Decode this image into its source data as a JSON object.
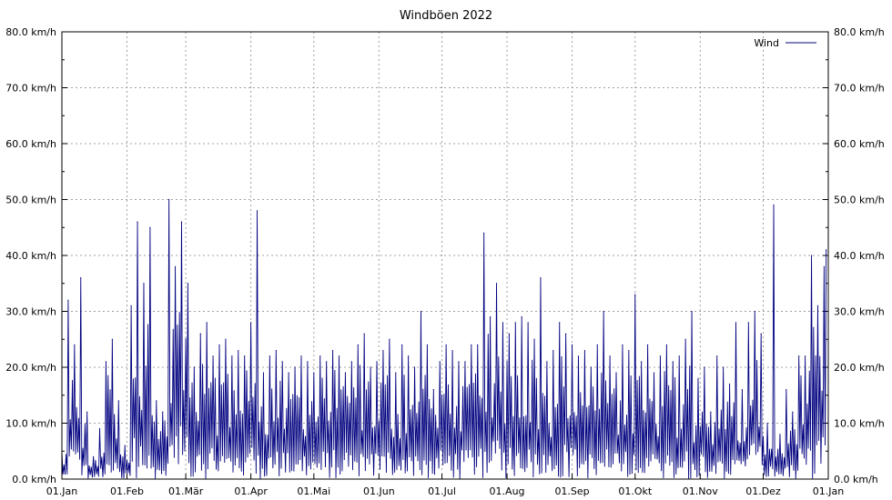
{
  "chart_data": {
    "type": "line",
    "title": "Windböen 2022",
    "xlabel": "",
    "ylabel": "",
    "unit": "km/h",
    "ylim": [
      0,
      80
    ],
    "yticks": [
      0,
      10,
      20,
      30,
      40,
      50,
      60,
      70,
      80
    ],
    "ytick_labels": [
      "0.0 km/h",
      "10.0 km/h",
      "20.0 km/h",
      "30.0 km/h",
      "40.0 km/h",
      "50.0 km/h",
      "60.0 km/h",
      "70.0 km/h",
      "80.0 km/h"
    ],
    "xlim": [
      "2022-01-01",
      "2023-01-01"
    ],
    "xtick_dates": [
      "2022-01-01",
      "2022-02-01",
      "2022-03-01",
      "2022-04-01",
      "2022-05-01",
      "2022-06-01",
      "2022-07-01",
      "2022-08-01",
      "2022-09-01",
      "2022-10-01",
      "2022-11-01",
      "2022-12-01",
      "2023-01-01"
    ],
    "xtick_labels": [
      "01.Jan",
      "01.Feb",
      "01.Mär",
      "01.Apr",
      "01.Mai",
      "01.Jun",
      "01.Jul",
      "01.Aug",
      "01.Sep",
      "01.Okt",
      "01.Nov",
      "01.Dez",
      "01.Jan"
    ],
    "grid": true,
    "legend": "top-right",
    "series": [
      {
        "name": "Wind",
        "color": "#00007f",
        "x": [
          "2022-01-01",
          "2022-01-04",
          "2022-01-07",
          "2022-01-10",
          "2022-01-13",
          "2022-01-16",
          "2022-01-19",
          "2022-01-22",
          "2022-01-25",
          "2022-01-28",
          "2022-01-31",
          "2022-02-03",
          "2022-02-06",
          "2022-02-09",
          "2022-02-12",
          "2022-02-15",
          "2022-02-18",
          "2022-02-21",
          "2022-02-24",
          "2022-02-27",
          "2022-03-02",
          "2022-03-05",
          "2022-03-08",
          "2022-03-11",
          "2022-03-14",
          "2022-03-17",
          "2022-03-20",
          "2022-03-23",
          "2022-03-26",
          "2022-03-29",
          "2022-04-01",
          "2022-04-04",
          "2022-04-07",
          "2022-04-10",
          "2022-04-13",
          "2022-04-16",
          "2022-04-19",
          "2022-04-22",
          "2022-04-25",
          "2022-04-28",
          "2022-05-01",
          "2022-05-04",
          "2022-05-07",
          "2022-05-10",
          "2022-05-13",
          "2022-05-16",
          "2022-05-19",
          "2022-05-22",
          "2022-05-25",
          "2022-05-28",
          "2022-05-31",
          "2022-06-03",
          "2022-06-06",
          "2022-06-09",
          "2022-06-12",
          "2022-06-15",
          "2022-06-18",
          "2022-06-21",
          "2022-06-24",
          "2022-06-27",
          "2022-06-30",
          "2022-07-03",
          "2022-07-06",
          "2022-07-09",
          "2022-07-12",
          "2022-07-15",
          "2022-07-18",
          "2022-07-21",
          "2022-07-24",
          "2022-07-27",
          "2022-07-30",
          "2022-08-02",
          "2022-08-05",
          "2022-08-08",
          "2022-08-11",
          "2022-08-14",
          "2022-08-17",
          "2022-08-20",
          "2022-08-23",
          "2022-08-26",
          "2022-08-29",
          "2022-09-01",
          "2022-09-04",
          "2022-09-07",
          "2022-09-10",
          "2022-09-13",
          "2022-09-16",
          "2022-09-19",
          "2022-09-22",
          "2022-09-25",
          "2022-09-28",
          "2022-10-01",
          "2022-10-04",
          "2022-10-07",
          "2022-10-10",
          "2022-10-13",
          "2022-10-16",
          "2022-10-19",
          "2022-10-22",
          "2022-10-25",
          "2022-10-28",
          "2022-10-31",
          "2022-11-03",
          "2022-11-06",
          "2022-11-09",
          "2022-11-12",
          "2022-11-15",
          "2022-11-18",
          "2022-11-21",
          "2022-11-24",
          "2022-11-27",
          "2022-11-30",
          "2022-12-03",
          "2022-12-06",
          "2022-12-09",
          "2022-12-12",
          "2022-12-15",
          "2022-12-18",
          "2022-12-21",
          "2022-12-24",
          "2022-12-27",
          "2022-12-30",
          "2022-12-31"
        ],
        "values": [
          5,
          32,
          24,
          36,
          12,
          4,
          9,
          21,
          25,
          14,
          6,
          31,
          46,
          35,
          45,
          14,
          12,
          50,
          38,
          46,
          35,
          20,
          26,
          28,
          22,
          24,
          25,
          22,
          23,
          22,
          28,
          48,
          19,
          22,
          23,
          21,
          19,
          20,
          22,
          21,
          19,
          22,
          21,
          23,
          22,
          19,
          21,
          24,
          26,
          20,
          21,
          23,
          25,
          19,
          24,
          22,
          20,
          30,
          24,
          16,
          21,
          24,
          23,
          21,
          21,
          24,
          24,
          44,
          29,
          35,
          28,
          26,
          28,
          29,
          28,
          25,
          36,
          21,
          23,
          28,
          26,
          24,
          22,
          23,
          20,
          24,
          30,
          22,
          19,
          24,
          23,
          33,
          21,
          24,
          19,
          22,
          24,
          21,
          22,
          25,
          30,
          18,
          20,
          12,
          22,
          20,
          17,
          28,
          16,
          28,
          30,
          26,
          10,
          49,
          8,
          16,
          12,
          22,
          22,
          40,
          31,
          38,
          41
        ]
      }
    ]
  }
}
